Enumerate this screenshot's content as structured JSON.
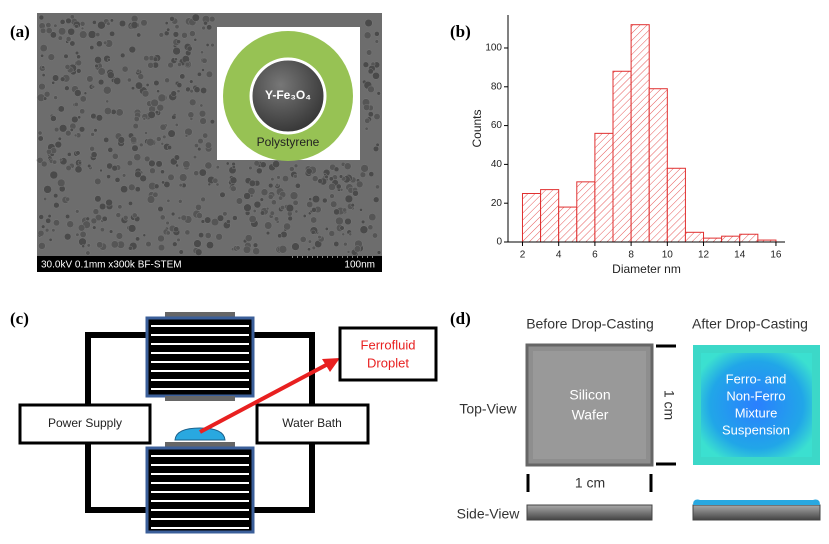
{
  "panels": {
    "a": {
      "label": "(a)",
      "info": "30.0kV 0.1mm x300k BF-STEM",
      "scale_bar": "100nm",
      "core": "Y-Fe₃O₄",
      "shell": "Polystyrene"
    },
    "c": {
      "label": "(c)",
      "droplet_label": [
        "Ferrofluid",
        "Droplet"
      ],
      "power": "Power Supply",
      "bath": "Water Bath"
    },
    "d": {
      "label": "(d)",
      "before": "Before Drop-Casting",
      "after": "After Drop-Casting",
      "top_view": "Top-View",
      "side_view": "Side-View",
      "wafer": [
        "Silicon",
        "Wafer"
      ],
      "suspension": [
        "Ferro- and",
        "Non-Ferro",
        "Mixture",
        "Suspension"
      ],
      "height": "1 cm",
      "width": "1 cm"
    }
  },
  "chart_data": {
    "type": "histogram",
    "label": "(b)",
    "xlabel": "Diameter nm",
    "ylabel": "Counts",
    "bins": [
      2,
      3,
      4,
      5,
      6,
      7,
      8,
      9,
      10,
      11,
      12,
      13,
      14,
      15,
      16
    ],
    "values": [
      25,
      27,
      18,
      31,
      56,
      88,
      112,
      79,
      38,
      5,
      2,
      3,
      4,
      1
    ],
    "color": "#e03030",
    "hatch": true,
    "xlim": [
      1.2,
      16.5
    ],
    "ylim": [
      0,
      117
    ],
    "xticks": [
      2,
      4,
      6,
      8,
      10,
      12,
      14,
      16
    ],
    "yticks": [
      0,
      20,
      40,
      60,
      80,
      100
    ]
  }
}
